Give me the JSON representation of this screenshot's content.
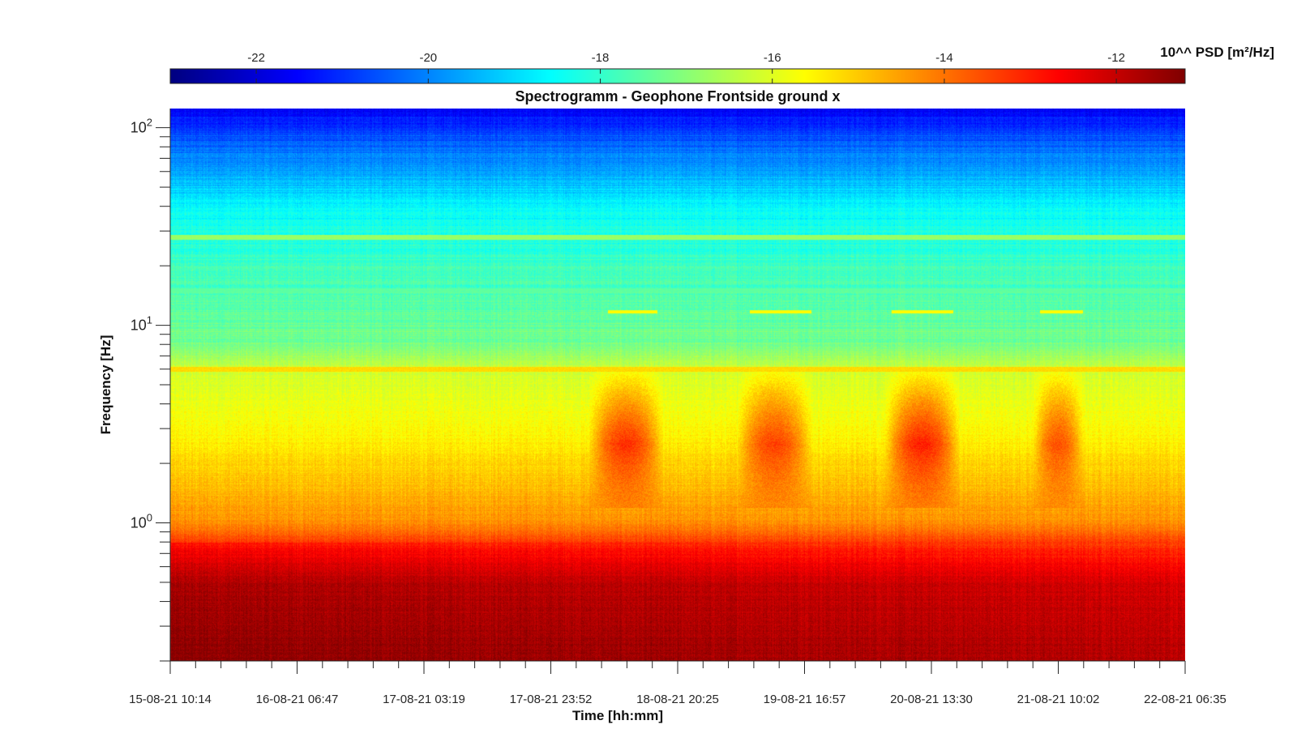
{
  "chart_data": {
    "type": "heatmap",
    "title": "Spectrogramm - Geophone Frontside ground x",
    "xlabel": "Time [hh:mm]",
    "ylabel": "Frequency [Hz]",
    "y_scale": "log",
    "ylim": [
      0.2,
      125
    ],
    "x_ticks": [
      "15-08-21 10:14",
      "16-08-21 06:47",
      "17-08-21 03:19",
      "17-08-21 23:52",
      "18-08-21 20:25",
      "19-08-21 16:57",
      "20-08-21 13:30",
      "21-08-21 10:02",
      "22-08-21 06:35"
    ],
    "y_ticks": [
      {
        "value": 1,
        "base": "10",
        "exp": "0"
      },
      {
        "value": 10,
        "base": "10",
        "exp": "1"
      },
      {
        "value": 100,
        "base": "10",
        "exp": "2"
      }
    ],
    "colorbar": {
      "label": "10^^ PSD [m²/Hz]",
      "range": [
        -23,
        -11.2
      ],
      "colormap": "jet",
      "ticks": [
        {
          "value": -22,
          "label": "-22"
        },
        {
          "value": -20,
          "label": "-20"
        },
        {
          "value": -18,
          "label": "-18"
        },
        {
          "value": -16,
          "label": "-16"
        },
        {
          "value": -14,
          "label": "-14"
        },
        {
          "value": -12,
          "label": "-12"
        }
      ],
      "placement": "top"
    },
    "features": {
      "background_by_frequency": [
        {
          "freq": 0.2,
          "psd": -11.6
        },
        {
          "freq": 0.5,
          "psd": -12.0
        },
        {
          "freq": 0.75,
          "psd": -13.0
        },
        {
          "freq": 1.0,
          "psd": -14.3
        },
        {
          "freq": 1.6,
          "psd": -14.9
        },
        {
          "freq": 3.0,
          "psd": -15.6
        },
        {
          "freq": 6.0,
          "psd": -16.2
        },
        {
          "freq": 8.0,
          "psd": -17.2
        },
        {
          "freq": 20.0,
          "psd": -17.9
        },
        {
          "freq": 40.0,
          "psd": -18.6
        },
        {
          "freq": 60.0,
          "psd": -19.6
        },
        {
          "freq": 100.0,
          "psd": -20.9
        },
        {
          "freq": 125.0,
          "psd": -21.6
        }
      ],
      "horizontal_lines": [
        {
          "freq": 6.0,
          "psd": -15.2
        },
        {
          "freq": 28.0,
          "psd": -16.8
        },
        {
          "freq": 15.0,
          "psd": -17.5
        }
      ],
      "activity_bursts": [
        {
          "start": "18-08-21 06:00",
          "end": "18-08-21 18:00",
          "psd": -13.2
        },
        {
          "start": "19-08-21 06:00",
          "end": "19-08-21 18:00",
          "psd": -13.4
        },
        {
          "start": "20-08-21 06:00",
          "end": "20-08-21 18:00",
          "psd": -13.0
        },
        {
          "start": "21-08-21 06:00",
          "end": "21-08-21 14:00",
          "psd": -13.6
        }
      ],
      "narrow_lines_12hz": [
        {
          "start": "18-08-21 09:00",
          "end": "18-08-21 17:00",
          "freq": 11.7
        },
        {
          "start": "19-08-21 08:00",
          "end": "19-08-21 18:00",
          "freq": 11.7
        },
        {
          "start": "20-08-21 07:00",
          "end": "20-08-21 17:00",
          "freq": 11.7
        },
        {
          "start": "21-08-21 07:00",
          "end": "21-08-21 14:00",
          "freq": 11.7
        }
      ]
    }
  }
}
